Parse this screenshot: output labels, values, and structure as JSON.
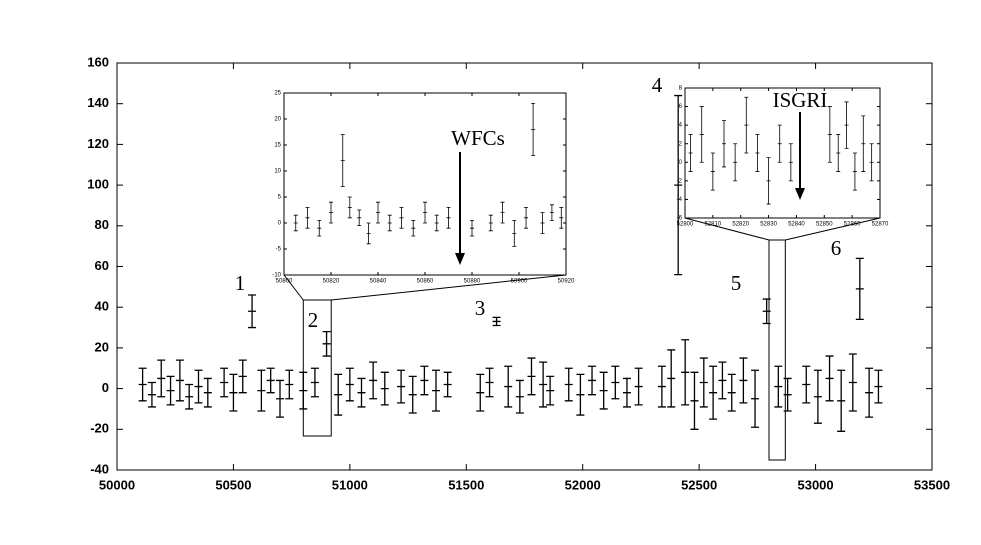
{
  "chart_data": [
    {
      "type": "errorbar",
      "xlim": [
        50000,
        53500
      ],
      "xticks": [
        50000,
        50500,
        51000,
        51500,
        52000,
        52500,
        53000,
        53500
      ],
      "ylim": [
        -40,
        160
      ],
      "yticks": [
        -40,
        -20,
        0,
        20,
        40,
        60,
        80,
        100,
        120,
        140,
        160
      ],
      "x": [
        50110,
        50150,
        50190,
        50230,
        50270,
        50310,
        50350,
        50390,
        50460,
        50500,
        50540,
        50580,
        50620,
        50660,
        50700,
        50740,
        50800,
        50850,
        50900,
        50950,
        51000,
        51050,
        51100,
        51150,
        51220,
        51270,
        51320,
        51370,
        51420,
        51560,
        51600,
        51630,
        51680,
        51730,
        51780,
        51830,
        51860,
        51940,
        51990,
        52040,
        52090,
        52140,
        52190,
        52240,
        52340,
        52380,
        52410,
        52440,
        52480,
        52520,
        52560,
        52600,
        52640,
        52690,
        52740,
        52790,
        52840,
        52880,
        52960,
        53010,
        53060,
        53110,
        53160,
        53190,
        53230,
        53270
      ],
      "values": [
        2,
        -3,
        5,
        -1,
        4,
        -4,
        1,
        -2,
        3,
        -2,
        6,
        38,
        -1,
        4,
        -5,
        2,
        -1,
        3,
        22,
        -3,
        2,
        -2,
        4,
        0,
        1,
        -3,
        4,
        -1,
        2,
        -2,
        3,
        33,
        1,
        -4,
        6,
        2,
        -1,
        2,
        -3,
        4,
        -1,
        3,
        -2,
        1,
        1,
        5,
        100,
        8,
        -6,
        3,
        -2,
        4,
        -2,
        4,
        -5,
        38,
        1,
        -3,
        2,
        -4,
        5,
        -6,
        3,
        49,
        -2,
        1
      ],
      "errors": [
        8,
        6,
        9,
        7,
        10,
        6,
        8,
        7,
        7,
        9,
        8,
        8,
        10,
        6,
        9,
        7,
        9,
        7,
        6,
        10,
        8,
        7,
        9,
        8,
        8,
        9,
        7,
        10,
        6,
        9,
        7,
        2,
        10,
        8,
        9,
        11,
        7,
        8,
        10,
        7,
        9,
        8,
        7,
        9,
        10,
        14,
        44,
        16,
        14,
        12,
        13,
        9,
        9,
        11,
        14,
        6,
        10,
        8,
        9,
        13,
        11,
        15,
        14,
        15,
        12,
        8
      ],
      "annotations": [
        "1",
        "2",
        "3",
        "4",
        "5",
        "6"
      ]
    },
    {
      "type": "errorbar",
      "annotation": "WFCs",
      "xlim": [
        50800,
        50920
      ],
      "xticks": [
        50800,
        50820,
        50840,
        50860,
        50880,
        50900,
        50920
      ],
      "ylim": [
        -10,
        25
      ],
      "yticks": [
        -10,
        -5,
        0,
        5,
        10,
        15,
        20,
        25
      ],
      "x": [
        50805,
        50810,
        50815,
        50820,
        50825,
        50828,
        50832,
        50836,
        50840,
        50845,
        50850,
        50855,
        50860,
        50865,
        50870,
        50880,
        50888,
        50893,
        50898,
        50903,
        50906,
        50910,
        50914,
        50918
      ],
      "values": [
        0,
        1,
        -1,
        2,
        12,
        3,
        1,
        -2,
        2,
        0,
        1,
        -1,
        2,
        0,
        1,
        -1,
        0,
        2,
        -2,
        1,
        18,
        0,
        2,
        1
      ],
      "errors": [
        1.5,
        2,
        1.5,
        2,
        5,
        2,
        1.5,
        2,
        2,
        1.5,
        2,
        1.5,
        2,
        1.5,
        2,
        1.5,
        1.5,
        2,
        2.5,
        2,
        5,
        2,
        1.5,
        2
      ]
    },
    {
      "type": "errorbar",
      "annotation": "ISGRI",
      "xlim": [
        52800,
        52870
      ],
      "xticks": [
        52800,
        52810,
        52820,
        52830,
        52840,
        52850,
        52860,
        52870
      ],
      "ylim": [
        -6,
        8
      ],
      "yticks": [
        -6,
        -4,
        -2,
        0,
        2,
        4,
        6,
        8
      ],
      "x": [
        52802,
        52806,
        52810,
        52814,
        52818,
        52822,
        52826,
        52830,
        52834,
        52838,
        52852,
        52855,
        52858,
        52861,
        52864,
        52867
      ],
      "values": [
        1,
        3,
        -1,
        2,
        0,
        4,
        1,
        -2,
        2,
        0,
        3,
        1,
        4,
        -1,
        2,
        0
      ],
      "errors": [
        2,
        3,
        2,
        2.5,
        2,
        3,
        2,
        2.5,
        2,
        2,
        3,
        2,
        2.5,
        2,
        3,
        2
      ]
    }
  ]
}
